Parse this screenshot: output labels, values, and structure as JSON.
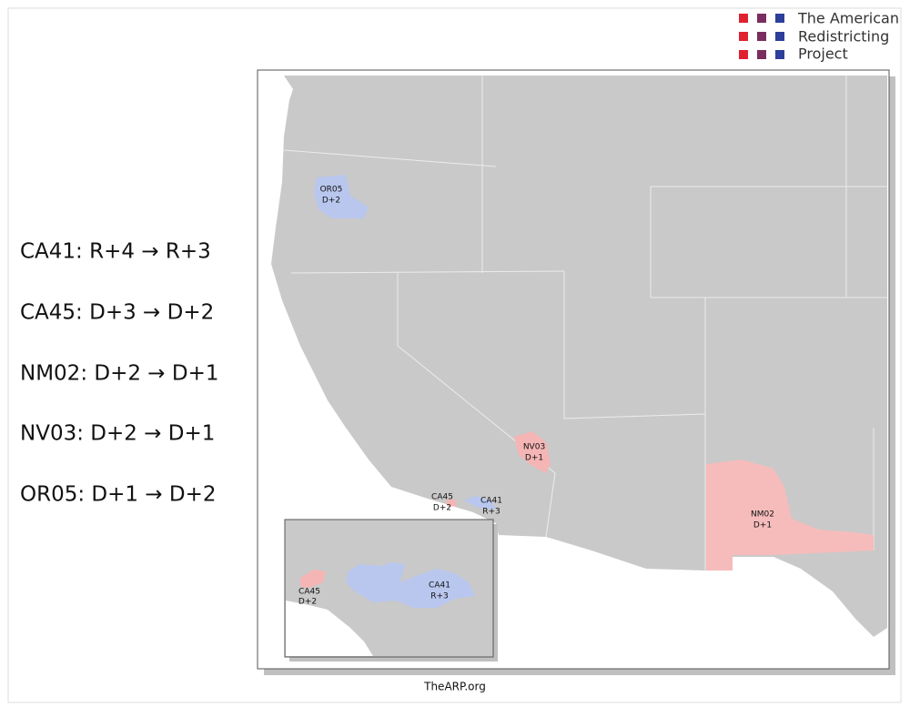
{
  "logo": {
    "lines": [
      "The American",
      "Redistricting",
      "Project"
    ]
  },
  "changes": [
    "CA41: R+4 → R+3",
    "CA45: D+3 → D+2",
    "NM02: D+2 → D+1",
    "NV03: D+2 → D+1",
    "OR05: D+1 → D+2"
  ],
  "map": {
    "labels": [
      {
        "district": "OR05",
        "lean": "D+2"
      },
      {
        "district": "NV03",
        "lean": "D+1"
      },
      {
        "district": "CA45",
        "lean": "D+2"
      },
      {
        "district": "CA41",
        "lean": "R+3"
      },
      {
        "district": "NM02",
        "lean": "D+1"
      }
    ]
  },
  "inset": {
    "labels": [
      {
        "district": "CA45",
        "lean": "D+2"
      },
      {
        "district": "CA41",
        "lean": "R+3"
      }
    ]
  },
  "footer": "TheARP.org"
}
